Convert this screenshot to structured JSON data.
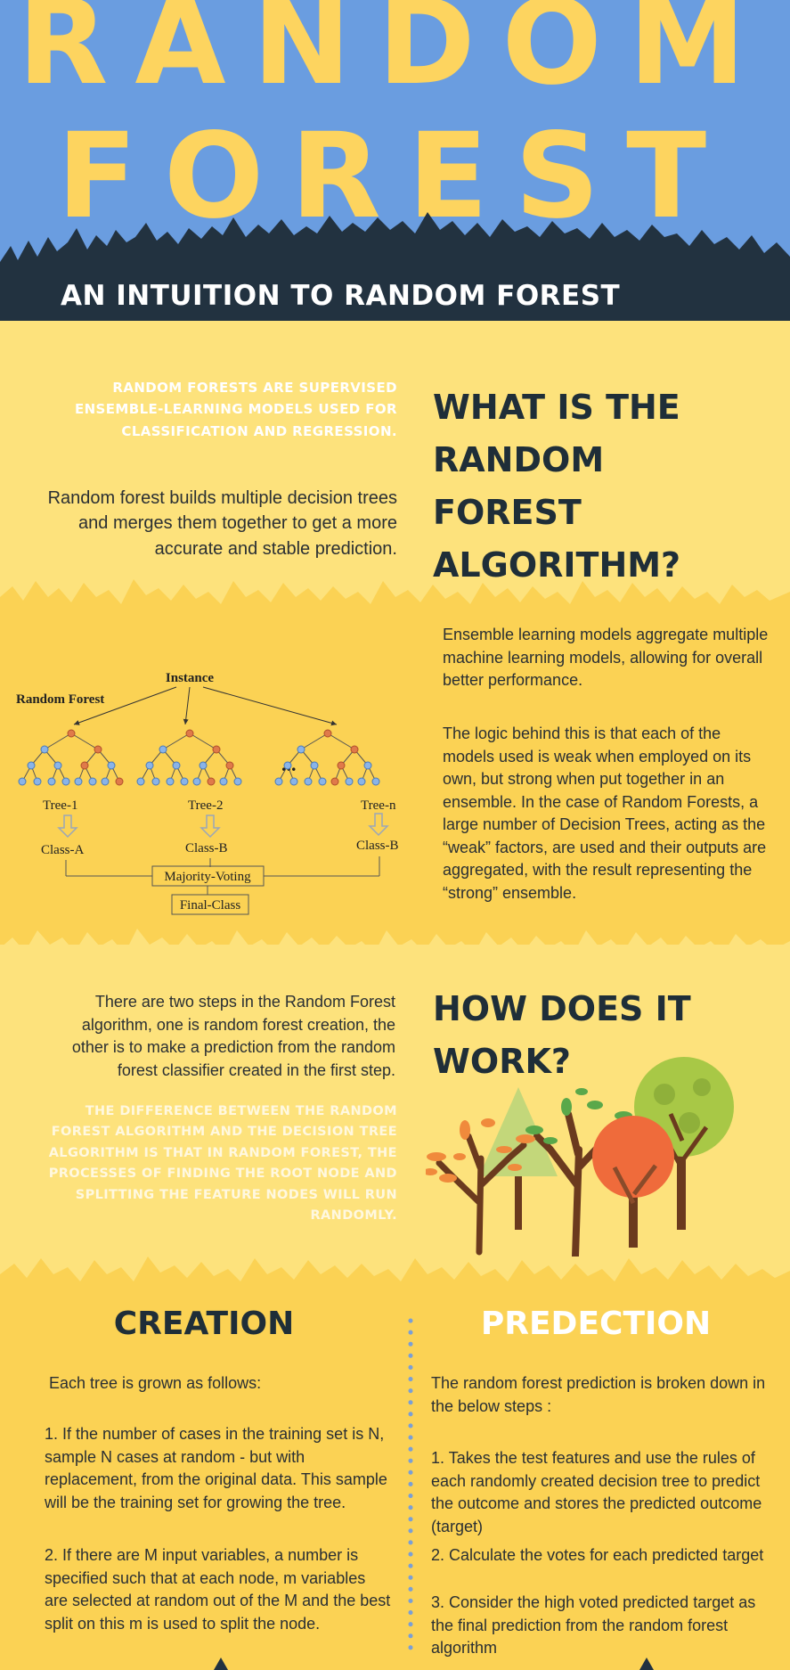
{
  "header": {
    "title_line1": "RANDOM",
    "title_line2": "FOREST",
    "subtitle": "AN INTUITION TO RANDOM FOREST",
    "colors": {
      "sky": "#6a9de0",
      "title": "#fdd45f",
      "treeline": "#223240"
    }
  },
  "section_what": {
    "heading": "WHAT IS THE RANDOM FOREST ALGORITHM?",
    "caps_note": "RANDOM FORESTS ARE SUPERVISED ENSEMBLE-LEARNING MODELS USED FOR CLASSIFICATION AND REGRESSION.",
    "paragraph": "Random forest builds multiple decision trees and merges them together to get a more accurate and stable prediction."
  },
  "section_ensemble": {
    "paragraph1": "Ensemble learning models aggregate multiple machine learning models, allowing for overall better performance.",
    "paragraph2": "The logic behind this is that each of the models used is weak when employed on its own, but strong when put together in an ensemble. In the case of Random Forests, a large number of Decision Trees, acting as the “weak” factors, are used and their outputs are aggregated, with the result representing the “strong” ensemble.",
    "diagram": {
      "instance": "Instance",
      "label": "Random Forest",
      "ellipsis": "...",
      "trees": [
        "Tree-1",
        "Tree-2",
        "Tree-n"
      ],
      "classes": [
        "Class-A",
        "Class-B",
        "Class-B"
      ],
      "voting": "Majority-Voting",
      "final": "Final-Class"
    }
  },
  "section_how": {
    "heading": "HOW DOES IT WORK?",
    "paragraph": "There are two steps in the Random Forest algorithm, one is random forest creation, the other is to make a prediction from the random forest classifier created in the first step.",
    "caps_note": "THE DIFFERENCE BETWEEN THE RANDOM FOREST ALGORITHM AND THE DECISION TREE ALGORITHM IS THAT IN RANDOM FOREST, THE PROCESSES OF FINDING THE ROOT NODE AND SPLITTING THE FEATURE NODES WILL RUN RANDOMLY."
  },
  "section_creation": {
    "heading": "CREATION",
    "intro": "Each tree is grown as follows:",
    "step1": "1. If the number of cases in the training set is N, sample N cases at random - but with replacement, from the original data. This sample will be the training set for growing the tree.",
    "step2": "2. If there are M input variables, a number is specified such that at each node, m variables are selected at random out of the M and the best split on this m is used to split the node."
  },
  "section_prediction": {
    "heading": "PREDECTION",
    "intro": "The random forest prediction is broken down in the below steps :",
    "step1": "1. Takes the test features and use the rules of each randomly created decision tree to predict the outcome and stores the predicted outcome (target)",
    "step2": "2. Calculate the votes for each predicted target",
    "step3": "3. Consider the high voted predicted target as the final prediction from the random forest algorithm"
  }
}
